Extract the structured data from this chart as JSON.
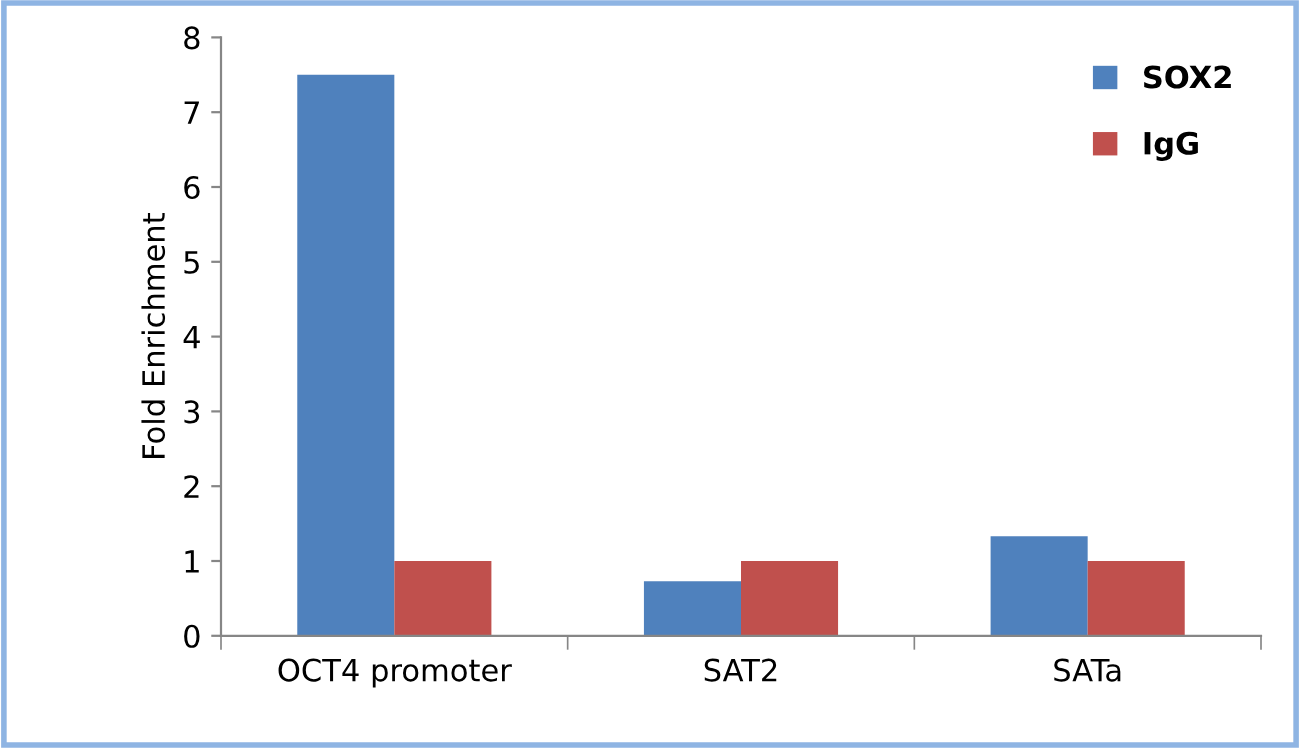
{
  "chart_data": {
    "type": "bar",
    "ylabel": "Fold Enrichment",
    "categories": [
      "OCT4 promoter",
      "SAT2",
      "SATa"
    ],
    "series": [
      {
        "name": "SOX2",
        "color": "#4f81bd",
        "values": [
          7.5,
          0.73,
          1.33
        ]
      },
      {
        "name": "IgG",
        "color": "#c0504d",
        "values": [
          1.0,
          1.0,
          1.0
        ]
      }
    ],
    "ylim": [
      0,
      8
    ],
    "yticks": [
      0,
      1,
      2,
      3,
      4,
      5,
      6,
      7,
      8
    ],
    "grid": false,
    "legend": "top right"
  }
}
